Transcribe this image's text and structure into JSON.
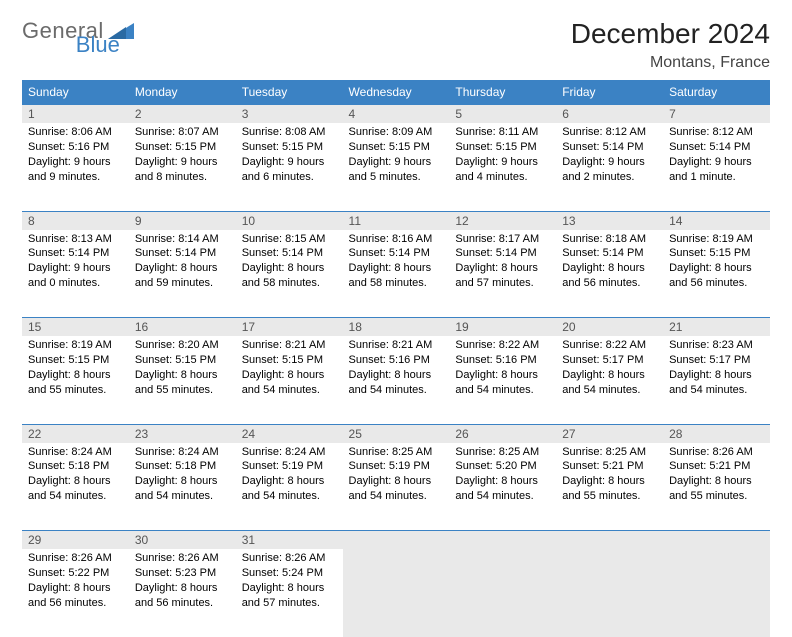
{
  "brand": {
    "general": "General",
    "blue": "Blue"
  },
  "title": "December 2024",
  "location": "Montans, France",
  "weekdays": [
    "Sunday",
    "Monday",
    "Tuesday",
    "Wednesday",
    "Thursday",
    "Friday",
    "Saturday"
  ],
  "colors": {
    "header_bg": "#3b82c4",
    "header_text": "#ffffff",
    "daynum_bg": "#e9e9e9",
    "rule": "#3b82c4",
    "logo_gray": "#6b6b6b",
    "logo_blue": "#3b82c4"
  },
  "weeks": [
    [
      {
        "n": "1",
        "sr": "Sunrise: 8:06 AM",
        "ss": "Sunset: 5:16 PM",
        "d1": "Daylight: 9 hours",
        "d2": "and 9 minutes."
      },
      {
        "n": "2",
        "sr": "Sunrise: 8:07 AM",
        "ss": "Sunset: 5:15 PM",
        "d1": "Daylight: 9 hours",
        "d2": "and 8 minutes."
      },
      {
        "n": "3",
        "sr": "Sunrise: 8:08 AM",
        "ss": "Sunset: 5:15 PM",
        "d1": "Daylight: 9 hours",
        "d2": "and 6 minutes."
      },
      {
        "n": "4",
        "sr": "Sunrise: 8:09 AM",
        "ss": "Sunset: 5:15 PM",
        "d1": "Daylight: 9 hours",
        "d2": "and 5 minutes."
      },
      {
        "n": "5",
        "sr": "Sunrise: 8:11 AM",
        "ss": "Sunset: 5:15 PM",
        "d1": "Daylight: 9 hours",
        "d2": "and 4 minutes."
      },
      {
        "n": "6",
        "sr": "Sunrise: 8:12 AM",
        "ss": "Sunset: 5:14 PM",
        "d1": "Daylight: 9 hours",
        "d2": "and 2 minutes."
      },
      {
        "n": "7",
        "sr": "Sunrise: 8:12 AM",
        "ss": "Sunset: 5:14 PM",
        "d1": "Daylight: 9 hours",
        "d2": "and 1 minute."
      }
    ],
    [
      {
        "n": "8",
        "sr": "Sunrise: 8:13 AM",
        "ss": "Sunset: 5:14 PM",
        "d1": "Daylight: 9 hours",
        "d2": "and 0 minutes."
      },
      {
        "n": "9",
        "sr": "Sunrise: 8:14 AM",
        "ss": "Sunset: 5:14 PM",
        "d1": "Daylight: 8 hours",
        "d2": "and 59 minutes."
      },
      {
        "n": "10",
        "sr": "Sunrise: 8:15 AM",
        "ss": "Sunset: 5:14 PM",
        "d1": "Daylight: 8 hours",
        "d2": "and 58 minutes."
      },
      {
        "n": "11",
        "sr": "Sunrise: 8:16 AM",
        "ss": "Sunset: 5:14 PM",
        "d1": "Daylight: 8 hours",
        "d2": "and 58 minutes."
      },
      {
        "n": "12",
        "sr": "Sunrise: 8:17 AM",
        "ss": "Sunset: 5:14 PM",
        "d1": "Daylight: 8 hours",
        "d2": "and 57 minutes."
      },
      {
        "n": "13",
        "sr": "Sunrise: 8:18 AM",
        "ss": "Sunset: 5:14 PM",
        "d1": "Daylight: 8 hours",
        "d2": "and 56 minutes."
      },
      {
        "n": "14",
        "sr": "Sunrise: 8:19 AM",
        "ss": "Sunset: 5:15 PM",
        "d1": "Daylight: 8 hours",
        "d2": "and 56 minutes."
      }
    ],
    [
      {
        "n": "15",
        "sr": "Sunrise: 8:19 AM",
        "ss": "Sunset: 5:15 PM",
        "d1": "Daylight: 8 hours",
        "d2": "and 55 minutes."
      },
      {
        "n": "16",
        "sr": "Sunrise: 8:20 AM",
        "ss": "Sunset: 5:15 PM",
        "d1": "Daylight: 8 hours",
        "d2": "and 55 minutes."
      },
      {
        "n": "17",
        "sr": "Sunrise: 8:21 AM",
        "ss": "Sunset: 5:15 PM",
        "d1": "Daylight: 8 hours",
        "d2": "and 54 minutes."
      },
      {
        "n": "18",
        "sr": "Sunrise: 8:21 AM",
        "ss": "Sunset: 5:16 PM",
        "d1": "Daylight: 8 hours",
        "d2": "and 54 minutes."
      },
      {
        "n": "19",
        "sr": "Sunrise: 8:22 AM",
        "ss": "Sunset: 5:16 PM",
        "d1": "Daylight: 8 hours",
        "d2": "and 54 minutes."
      },
      {
        "n": "20",
        "sr": "Sunrise: 8:22 AM",
        "ss": "Sunset: 5:17 PM",
        "d1": "Daylight: 8 hours",
        "d2": "and 54 minutes."
      },
      {
        "n": "21",
        "sr": "Sunrise: 8:23 AM",
        "ss": "Sunset: 5:17 PM",
        "d1": "Daylight: 8 hours",
        "d2": "and 54 minutes."
      }
    ],
    [
      {
        "n": "22",
        "sr": "Sunrise: 8:24 AM",
        "ss": "Sunset: 5:18 PM",
        "d1": "Daylight: 8 hours",
        "d2": "and 54 minutes."
      },
      {
        "n": "23",
        "sr": "Sunrise: 8:24 AM",
        "ss": "Sunset: 5:18 PM",
        "d1": "Daylight: 8 hours",
        "d2": "and 54 minutes."
      },
      {
        "n": "24",
        "sr": "Sunrise: 8:24 AM",
        "ss": "Sunset: 5:19 PM",
        "d1": "Daylight: 8 hours",
        "d2": "and 54 minutes."
      },
      {
        "n": "25",
        "sr": "Sunrise: 8:25 AM",
        "ss": "Sunset: 5:19 PM",
        "d1": "Daylight: 8 hours",
        "d2": "and 54 minutes."
      },
      {
        "n": "26",
        "sr": "Sunrise: 8:25 AM",
        "ss": "Sunset: 5:20 PM",
        "d1": "Daylight: 8 hours",
        "d2": "and 54 minutes."
      },
      {
        "n": "27",
        "sr": "Sunrise: 8:25 AM",
        "ss": "Sunset: 5:21 PM",
        "d1": "Daylight: 8 hours",
        "d2": "and 55 minutes."
      },
      {
        "n": "28",
        "sr": "Sunrise: 8:26 AM",
        "ss": "Sunset: 5:21 PM",
        "d1": "Daylight: 8 hours",
        "d2": "and 55 minutes."
      }
    ],
    [
      {
        "n": "29",
        "sr": "Sunrise: 8:26 AM",
        "ss": "Sunset: 5:22 PM",
        "d1": "Daylight: 8 hours",
        "d2": "and 56 minutes."
      },
      {
        "n": "30",
        "sr": "Sunrise: 8:26 AM",
        "ss": "Sunset: 5:23 PM",
        "d1": "Daylight: 8 hours",
        "d2": "and 56 minutes."
      },
      {
        "n": "31",
        "sr": "Sunrise: 8:26 AM",
        "ss": "Sunset: 5:24 PM",
        "d1": "Daylight: 8 hours",
        "d2": "and 57 minutes."
      },
      null,
      null,
      null,
      null
    ]
  ]
}
